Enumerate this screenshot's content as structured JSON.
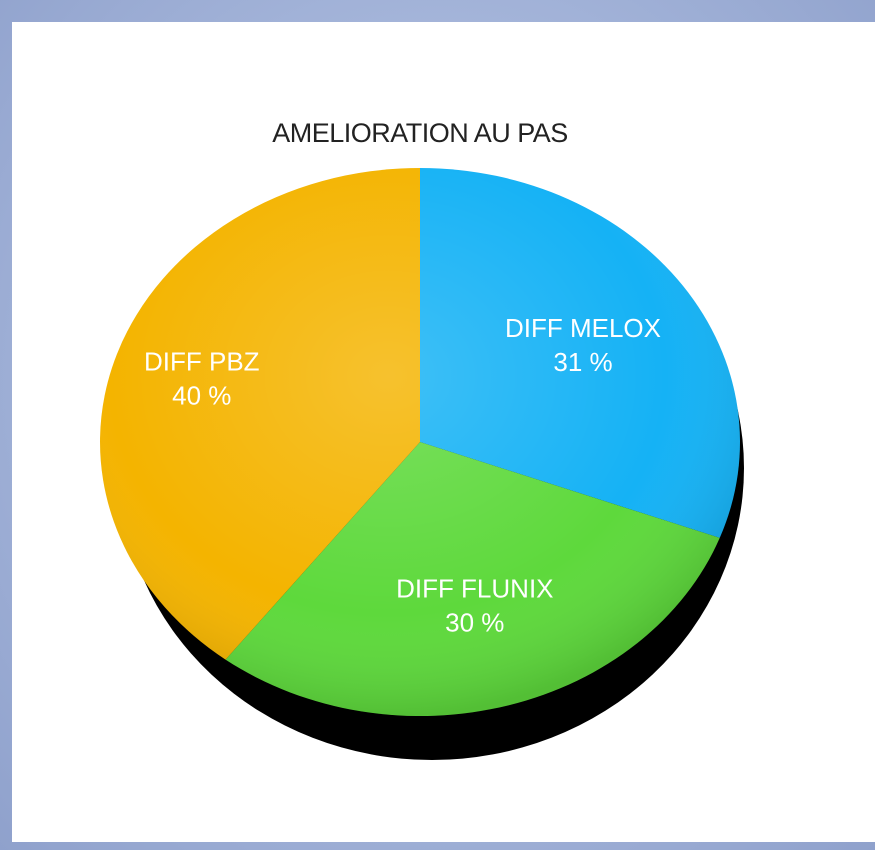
{
  "colors": {
    "page_background": "#a8b8dc",
    "card_background": "#ffffff",
    "shadow": "#000000"
  },
  "chart_data": {
    "type": "pie",
    "title": "AMELIORATION AU PAS",
    "slices": [
      {
        "label": "DIFF MELOX",
        "value": 31,
        "value_label": "31 %",
        "color": "#15b2f5"
      },
      {
        "label": "DIFF FLUNIX",
        "value": 30,
        "value_label": "30 %",
        "color": "#5ed93c"
      },
      {
        "label": "DIFF PBZ",
        "value": 40,
        "value_label": "40 %",
        "color": "#f4b400"
      }
    ],
    "legend": "none"
  }
}
